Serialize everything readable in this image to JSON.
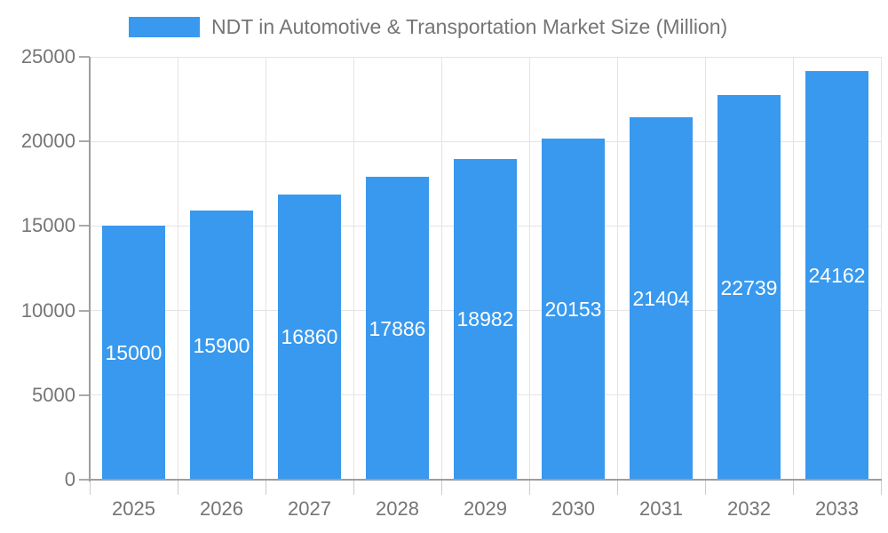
{
  "legend": {
    "label": "NDT in Automotive & Transportation Market Size (Million)"
  },
  "chart_data": {
    "type": "bar",
    "title": "NDT in Automotive & Transportation Market Size (Million)",
    "categories": [
      "2025",
      "2026",
      "2027",
      "2028",
      "2029",
      "2030",
      "2031",
      "2032",
      "2033"
    ],
    "series": [
      {
        "name": "NDT in Automotive & Transportation Market Size (Million)",
        "values": [
          15000,
          15900,
          16860,
          17886,
          18982,
          20153,
          21404,
          22739,
          24162
        ]
      }
    ],
    "xlabel": "",
    "ylabel": "",
    "ylim": [
      0,
      25000
    ],
    "y_ticks": [
      0,
      5000,
      10000,
      15000,
      20000,
      25000
    ],
    "grid": true,
    "legend_position": "top",
    "data_label_position": "inside-middle",
    "colors": {
      "bar": "#3999EE",
      "bar_label": "#FFFFFF",
      "axis_line": "#9E9E9E",
      "gridline": "#E4E4E4",
      "tick_mark_x": "#CCCCCC",
      "tick_mark_y": "#ABABAB",
      "tick_label": "#757575",
      "background": "#FFFFFF"
    }
  }
}
